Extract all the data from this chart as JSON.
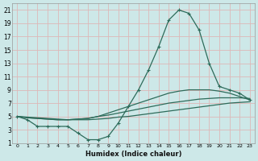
{
  "xlabel": "Humidex (Indice chaleur)",
  "bg_color": "#cde8e8",
  "grid_color": "#ddb8b8",
  "line_color": "#2d6b5a",
  "xlim": [
    -0.5,
    23.5
  ],
  "ylim": [
    1,
    22
  ],
  "yticks": [
    1,
    3,
    5,
    7,
    9,
    11,
    13,
    15,
    17,
    19,
    21
  ],
  "xticks": [
    0,
    1,
    2,
    3,
    4,
    5,
    6,
    7,
    8,
    9,
    10,
    11,
    12,
    13,
    14,
    15,
    16,
    17,
    18,
    19,
    20,
    21,
    22,
    23
  ],
  "curve1_x": [
    0,
    1,
    2,
    3,
    4,
    5,
    6,
    7,
    8,
    9,
    10,
    11,
    12,
    13,
    14,
    15,
    16,
    17,
    18,
    19,
    20,
    21,
    22,
    23
  ],
  "curve1_y": [
    5,
    4.5,
    3.5,
    3.5,
    3.5,
    3.5,
    2.5,
    1.5,
    1.5,
    2.0,
    4.0,
    6.5,
    9.0,
    12.0,
    15.5,
    19.5,
    21.0,
    20.5,
    18.0,
    13.0,
    9.5,
    9.0,
    8.5,
    7.5
  ],
  "curve2_x": [
    0,
    1,
    2,
    3,
    4,
    5,
    6,
    7,
    8,
    9,
    10,
    11,
    12,
    13,
    14,
    15,
    16,
    17,
    18,
    19,
    20,
    21,
    22,
    23
  ],
  "curve2_y": [
    5.0,
    4.8,
    4.7,
    4.6,
    4.5,
    4.5,
    4.6,
    4.7,
    5.0,
    5.5,
    6.0,
    6.5,
    7.0,
    7.5,
    8.0,
    8.5,
    8.8,
    9.0,
    9.0,
    9.0,
    8.8,
    8.5,
    8.0,
    7.5
  ],
  "curve3_x": [
    0,
    1,
    2,
    3,
    4,
    5,
    6,
    7,
    8,
    9,
    10,
    11,
    12,
    13,
    14,
    15,
    16,
    17,
    18,
    19,
    20,
    21,
    22,
    23
  ],
  "curve3_y": [
    5.0,
    4.8,
    4.7,
    4.6,
    4.5,
    4.5,
    4.6,
    4.7,
    5.0,
    5.2,
    5.5,
    5.8,
    6.1,
    6.4,
    6.7,
    7.0,
    7.2,
    7.4,
    7.6,
    7.7,
    7.8,
    7.8,
    7.8,
    7.7
  ],
  "curve4_x": [
    0,
    1,
    2,
    3,
    4,
    5,
    6,
    7,
    8,
    9,
    10,
    11,
    12,
    13,
    14,
    15,
    16,
    17,
    18,
    19,
    20,
    21,
    22,
    23
  ],
  "curve4_y": [
    5.0,
    4.9,
    4.8,
    4.7,
    4.6,
    4.5,
    4.5,
    4.5,
    4.6,
    4.7,
    4.9,
    5.0,
    5.2,
    5.4,
    5.6,
    5.8,
    6.0,
    6.2,
    6.4,
    6.6,
    6.8,
    7.0,
    7.1,
    7.2
  ]
}
